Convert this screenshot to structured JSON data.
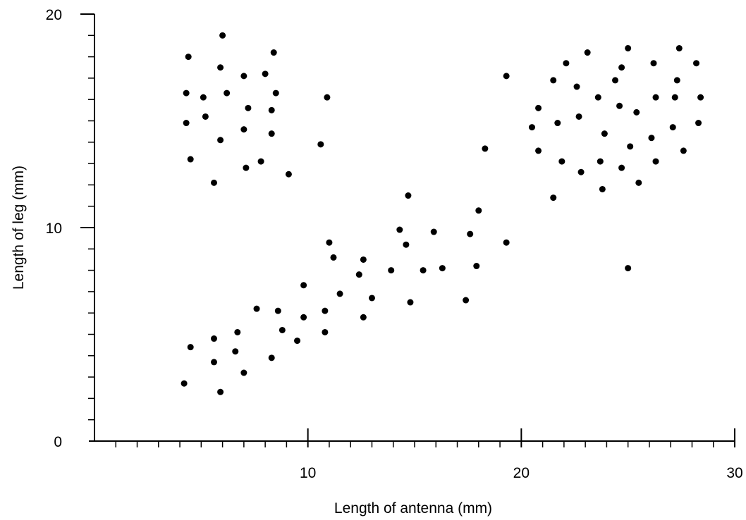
{
  "chart_data": {
    "type": "scatter",
    "title": "",
    "xlabel": "Length of antenna (mm)",
    "ylabel": "Length of leg (mm)",
    "xlim": [
      0,
      30
    ],
    "ylim": [
      0,
      20
    ],
    "x_ticks": [
      0,
      10,
      20,
      30
    ],
    "x_tick_labels": [
      "",
      "10",
      "20",
      "30"
    ],
    "x_minor_step": 1,
    "y_ticks": [
      0,
      10,
      20
    ],
    "y_tick_labels": [
      "0",
      "10",
      "20"
    ],
    "y_minor_step": 1,
    "grid": false,
    "legend": "none",
    "marker_color": "#000000",
    "points": [
      [
        4.2,
        2.7
      ],
      [
        4.5,
        4.4
      ],
      [
        5.6,
        4.8
      ],
      [
        5.6,
        3.7
      ],
      [
        5.9,
        2.3
      ],
      [
        6.6,
        4.2
      ],
      [
        6.7,
        5.1
      ],
      [
        7.0,
        3.2
      ],
      [
        7.6,
        6.2
      ],
      [
        8.3,
        3.9
      ],
      [
        8.6,
        6.1
      ],
      [
        8.8,
        5.2
      ],
      [
        9.5,
        4.7
      ],
      [
        9.8,
        5.8
      ],
      [
        9.8,
        7.3
      ],
      [
        10.8,
        5.1
      ],
      [
        10.8,
        6.1
      ],
      [
        11.0,
        9.3
      ],
      [
        11.2,
        8.6
      ],
      [
        11.5,
        6.9
      ],
      [
        12.4,
        7.8
      ],
      [
        12.6,
        5.8
      ],
      [
        12.6,
        8.5
      ],
      [
        13.0,
        6.7
      ],
      [
        13.9,
        8.0
      ],
      [
        14.3,
        9.9
      ],
      [
        14.6,
        9.2
      ],
      [
        14.7,
        11.5
      ],
      [
        14.8,
        6.5
      ],
      [
        15.4,
        8.0
      ],
      [
        15.9,
        9.8
      ],
      [
        16.3,
        8.1
      ],
      [
        17.4,
        6.6
      ],
      [
        17.6,
        9.7
      ],
      [
        17.9,
        8.2
      ],
      [
        18.0,
        10.8
      ],
      [
        18.3,
        13.7
      ],
      [
        19.3,
        9.3
      ],
      [
        19.3,
        17.1
      ],
      [
        4.3,
        16.3
      ],
      [
        4.3,
        14.9
      ],
      [
        4.4,
        18.0
      ],
      [
        4.5,
        13.2
      ],
      [
        5.1,
        16.1
      ],
      [
        5.2,
        15.2
      ],
      [
        5.6,
        12.1
      ],
      [
        5.9,
        17.5
      ],
      [
        5.9,
        14.1
      ],
      [
        6.2,
        16.3
      ],
      [
        6.0,
        19.0
      ],
      [
        7.0,
        17.1
      ],
      [
        7.0,
        14.6
      ],
      [
        7.1,
        12.8
      ],
      [
        7.2,
        15.6
      ],
      [
        7.8,
        13.1
      ],
      [
        8.0,
        17.2
      ],
      [
        8.3,
        14.4
      ],
      [
        8.3,
        15.5
      ],
      [
        8.4,
        18.2
      ],
      [
        8.5,
        16.3
      ],
      [
        9.1,
        12.5
      ],
      [
        10.6,
        13.9
      ],
      [
        10.9,
        16.1
      ],
      [
        20.5,
        14.7
      ],
      [
        20.8,
        13.6
      ],
      [
        20.8,
        15.6
      ],
      [
        21.5,
        16.9
      ],
      [
        21.5,
        11.4
      ],
      [
        21.7,
        14.9
      ],
      [
        21.9,
        13.1
      ],
      [
        22.1,
        17.7
      ],
      [
        22.6,
        16.6
      ],
      [
        22.7,
        15.2
      ],
      [
        22.8,
        12.6
      ],
      [
        23.1,
        18.2
      ],
      [
        23.6,
        16.1
      ],
      [
        23.7,
        13.1
      ],
      [
        23.8,
        11.8
      ],
      [
        23.9,
        14.4
      ],
      [
        24.4,
        16.9
      ],
      [
        24.6,
        15.7
      ],
      [
        24.7,
        12.8
      ],
      [
        24.7,
        17.5
      ],
      [
        25.0,
        18.4
      ],
      [
        25.0,
        8.1
      ],
      [
        25.1,
        13.8
      ],
      [
        25.4,
        15.4
      ],
      [
        25.5,
        12.1
      ],
      [
        26.1,
        14.2
      ],
      [
        26.2,
        17.7
      ],
      [
        26.3,
        16.1
      ],
      [
        26.3,
        13.1
      ],
      [
        27.1,
        14.7
      ],
      [
        27.2,
        16.1
      ],
      [
        27.3,
        16.9
      ],
      [
        27.4,
        18.4
      ],
      [
        27.6,
        13.6
      ],
      [
        28.2,
        17.7
      ],
      [
        28.3,
        14.9
      ],
      [
        28.4,
        16.1
      ]
    ]
  }
}
